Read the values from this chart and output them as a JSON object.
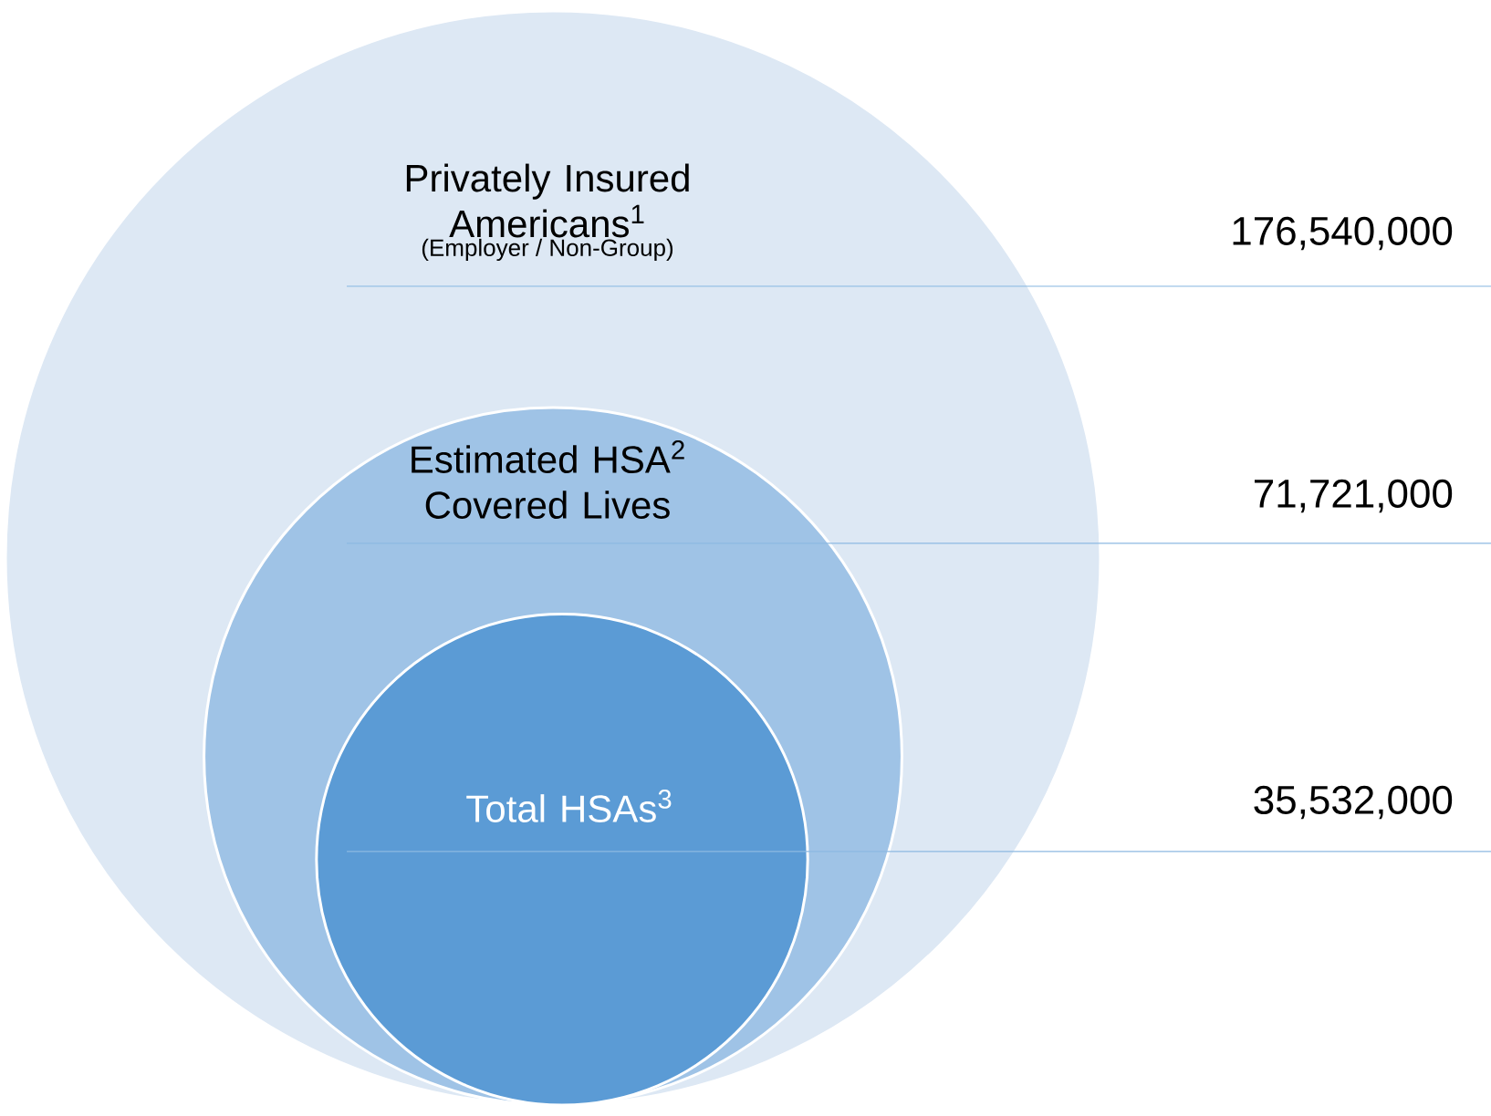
{
  "chart_data": {
    "type": "other",
    "categories": [
      "Privately Insured Americans$^{1}$",
      "Estimated HSA$^{2}$ Covered Lives",
      "Total HSAs$^{3}$"
    ],
    "values": [
      176540000,
      71721000,
      35532000
    ],
    "value_labels": [
      "176,540,000",
      "71,721,000",
      "35,532,000"
    ],
    "colors": [
      "#dde8f4",
      "#9fc3e6",
      "#5b9bd5"
    ],
    "annotations": [
      "(Employer / Non-Group)"
    ]
  }
}
